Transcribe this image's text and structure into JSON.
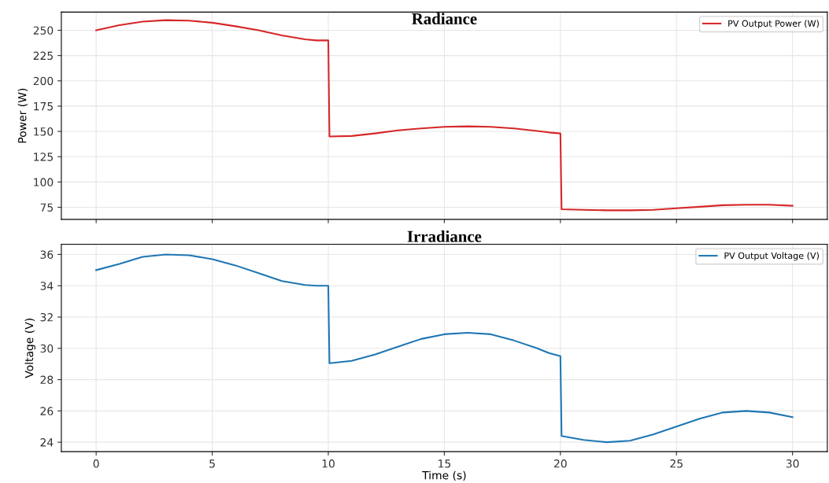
{
  "chart_data": [
    {
      "type": "line",
      "title": "Radiance",
      "ylabel": "Power (W)",
      "xlim": [
        -1.5,
        31.5
      ],
      "xticks": [
        0,
        5,
        10,
        15,
        20,
        25,
        30
      ],
      "ylim": [
        63,
        268
      ],
      "yticks": [
        75,
        100,
        125,
        150,
        175,
        200,
        225,
        250
      ],
      "grid": true,
      "legend": "top right",
      "tick_labels": "y",
      "series": [
        {
          "name": "PV Output Power (W)",
          "color": "#d62728",
          "x": [
            0,
            1,
            2,
            3,
            4,
            5,
            6,
            7,
            8,
            9,
            9.5,
            10,
            10.05,
            11,
            12,
            13,
            14,
            15,
            16,
            17,
            18,
            19,
            19.5,
            20,
            20.05,
            21,
            22,
            23,
            24,
            25,
            26,
            27,
            28,
            29,
            30
          ],
          "values": [
            250,
            255,
            258.5,
            260,
            259.5,
            257.5,
            254,
            250,
            245,
            241,
            240,
            240,
            145,
            145.5,
            148,
            151,
            153,
            154.5,
            155,
            154.5,
            153,
            150.5,
            149,
            148,
            73,
            72.5,
            72,
            72,
            72.5,
            74,
            75.5,
            77,
            77.5,
            77.5,
            76.5
          ]
        }
      ]
    },
    {
      "type": "line",
      "title": "Irradiance",
      "xlabel": "Time (s)",
      "ylabel": "Voltage (V)",
      "xlim": [
        -1.5,
        31.5
      ],
      "xticks": [
        0,
        5,
        10,
        15,
        20,
        25,
        30
      ],
      "ylim": [
        23.4,
        36.65
      ],
      "yticks": [
        24,
        26,
        28,
        30,
        32,
        34,
        36
      ],
      "grid": true,
      "legend": "top right",
      "series": [
        {
          "name": "PV Output Voltage (V)",
          "color": "#1f77b4",
          "x": [
            0,
            1,
            2,
            3,
            4,
            5,
            6,
            7,
            8,
            9,
            9.5,
            10,
            10.05,
            11,
            12,
            13,
            14,
            15,
            16,
            17,
            18,
            19,
            19.5,
            20,
            20.05,
            21,
            22,
            23,
            24,
            25,
            26,
            27,
            28,
            29,
            30
          ],
          "values": [
            35,
            35.4,
            35.85,
            36,
            35.95,
            35.7,
            35.3,
            34.8,
            34.3,
            34.05,
            34,
            34,
            29.05,
            29.2,
            29.6,
            30.1,
            30.6,
            30.9,
            31,
            30.9,
            30.5,
            30,
            29.7,
            29.5,
            24.4,
            24.15,
            24,
            24.1,
            24.5,
            25,
            25.5,
            25.9,
            26,
            25.9,
            25.6
          ]
        }
      ]
    }
  ]
}
